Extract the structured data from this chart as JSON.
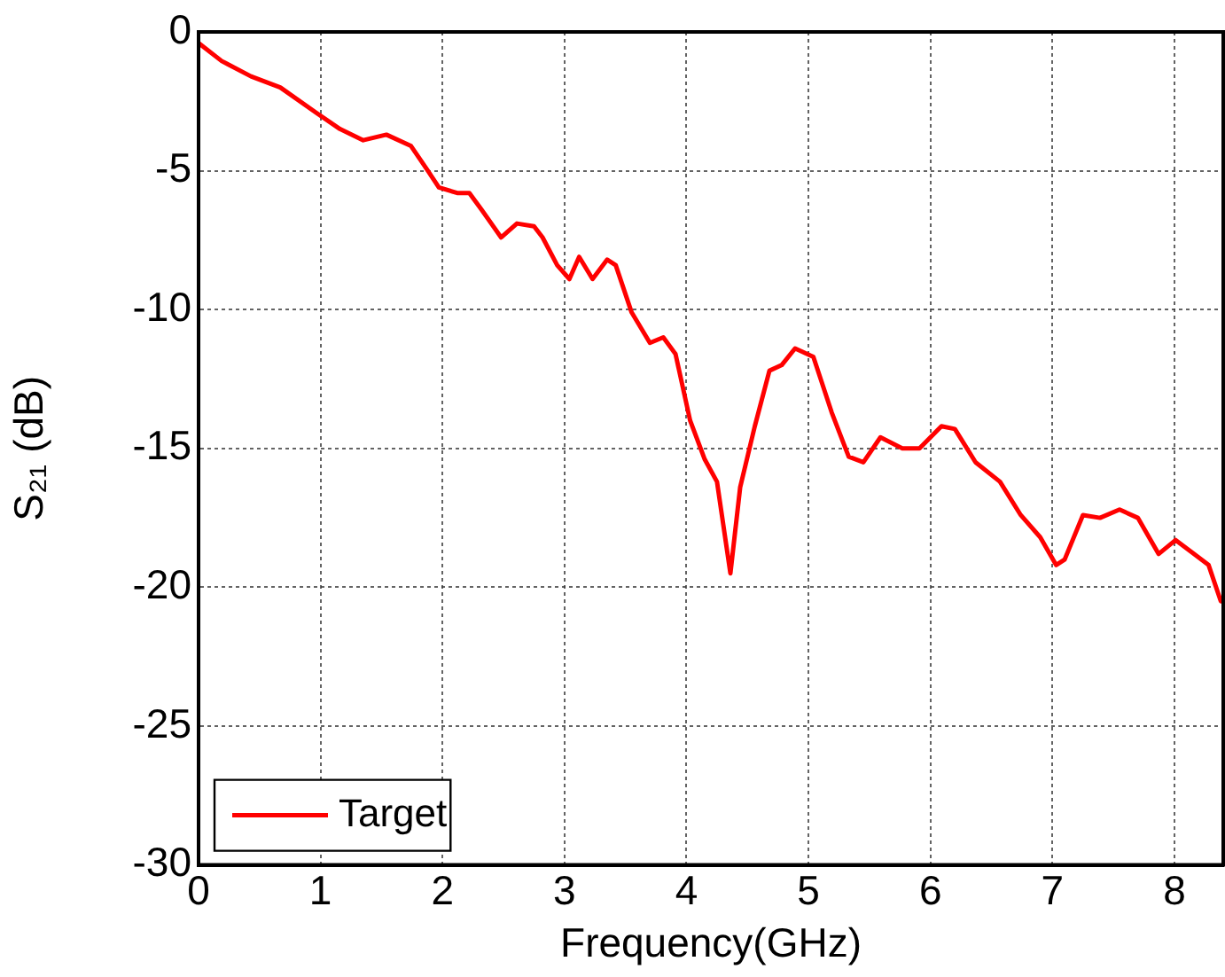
{
  "chart_data": {
    "type": "line",
    "xlabel": "Frequency(GHz)",
    "ylabel": "S₂₁ (dB)",
    "xlim": [
      0,
      8.4
    ],
    "xticks": [
      0,
      1,
      2,
      3,
      4,
      5,
      6,
      7,
      8
    ],
    "ylim": [
      -30,
      0
    ],
    "yticks": [
      -30,
      -25,
      -20,
      -15,
      -10,
      -5,
      0
    ],
    "grid": true,
    "legend": "bottom left",
    "line_style": "solid",
    "marker": "none",
    "x": [
      0,
      0.19,
      0.43,
      0.67,
      0.96,
      1.16,
      1.35,
      1.54,
      1.74,
      1.88,
      1.97,
      2.12,
      2.22,
      2.32,
      2.48,
      2.61,
      2.75,
      2.82,
      2.94,
      3.04,
      3.12,
      3.23,
      3.35,
      3.42,
      3.55,
      3.7,
      3.81,
      3.91,
      4.03,
      4.15,
      4.25,
      4.36,
      4.44,
      4.56,
      4.68,
      4.78,
      4.89,
      5.04,
      5.19,
      5.33,
      5.45,
      5.59,
      5.77,
      5.91,
      6.09,
      6.2,
      6.37,
      6.57,
      6.74,
      6.9,
      7.03,
      7.1,
      7.25,
      7.39,
      7.55,
      7.7,
      7.87,
      8.01,
      8.16,
      8.28,
      8.38
    ],
    "series": [
      {
        "name": "Target",
        "color": "#ff0000",
        "values": [
          -0.4,
          -1.05,
          -1.6,
          -2.0,
          -2.9,
          -3.5,
          -3.9,
          -3.7,
          -4.1,
          -5.0,
          -5.6,
          -5.8,
          -5.8,
          -6.4,
          -7.4,
          -6.9,
          -7.0,
          -7.4,
          -8.4,
          -8.9,
          -8.1,
          -8.9,
          -8.2,
          -8.4,
          -10.1,
          -11.2,
          -11.0,
          -11.6,
          -14.0,
          -15.4,
          -16.2,
          -19.5,
          -16.4,
          -14.2,
          -12.2,
          -12.0,
          -11.4,
          -11.7,
          -13.7,
          -15.3,
          -15.5,
          -14.6,
          -15.0,
          -15.0,
          -14.2,
          -14.3,
          -15.5,
          -16.2,
          -17.4,
          -18.2,
          -19.2,
          -19.0,
          -17.4,
          -17.5,
          -17.2,
          -17.5,
          -18.8,
          -18.3,
          -18.8,
          -19.2,
          -20.5
        ]
      }
    ]
  }
}
